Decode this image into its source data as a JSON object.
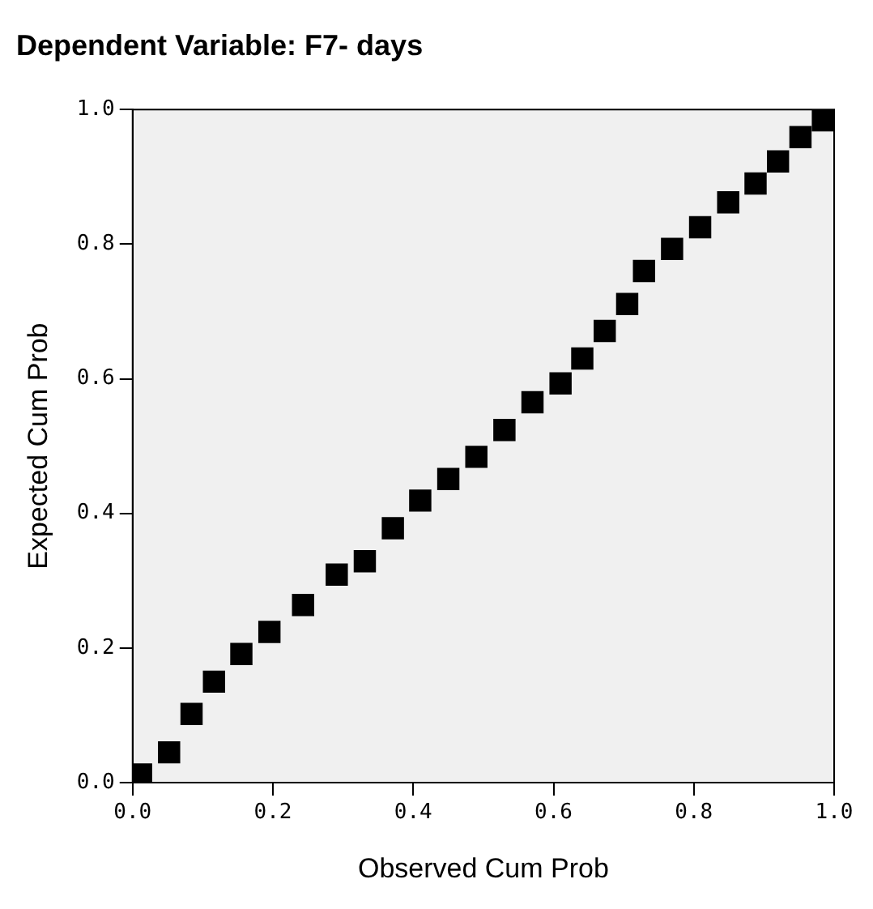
{
  "chart_data": {
    "type": "scatter",
    "title": "Dependent Variable: F7- days",
    "xlabel": "Observed Cum Prob",
    "ylabel": "Expected Cum Prob",
    "x": [
      0.012,
      0.052,
      0.084,
      0.116,
      0.155,
      0.195,
      0.243,
      0.291,
      0.331,
      0.371,
      0.41,
      0.45,
      0.49,
      0.53,
      0.57,
      0.61,
      0.641,
      0.673,
      0.705,
      0.729,
      0.769,
      0.809,
      0.849,
      0.888,
      0.92,
      0.952,
      0.984
    ],
    "series": [
      {
        "color": "#000000",
        "values": [
          0.012,
          0.045,
          0.102,
          0.15,
          0.191,
          0.224,
          0.264,
          0.309,
          0.329,
          0.378,
          0.419,
          0.451,
          0.484,
          0.524,
          0.565,
          0.593,
          0.63,
          0.671,
          0.711,
          0.76,
          0.793,
          0.825,
          0.862,
          0.89,
          0.923,
          0.959,
          0.984
        ]
      }
    ],
    "xlim": [
      0,
      1
    ],
    "ylim": [
      0,
      1
    ],
    "xticks": [
      {
        "value": 0,
        "label": "0.0"
      },
      {
        "value": 0.2,
        "label": "0.2"
      },
      {
        "value": 0.4,
        "label": "0.4"
      },
      {
        "value": 0.6,
        "label": "0.6"
      },
      {
        "value": 0.8,
        "label": "0.8"
      },
      {
        "value": 1,
        "label": "1.0"
      }
    ],
    "yticks": [
      {
        "value": 0,
        "label": "0.0"
      },
      {
        "value": 0.2,
        "label": "0.2"
      },
      {
        "value": 0.4,
        "label": "0.4"
      },
      {
        "value": 0.6,
        "label": "0.6"
      },
      {
        "value": 0.8,
        "label": "0.8"
      },
      {
        "value": 1,
        "label": "1.0"
      }
    ],
    "grid": false,
    "legend": false,
    "marker": "square"
  }
}
